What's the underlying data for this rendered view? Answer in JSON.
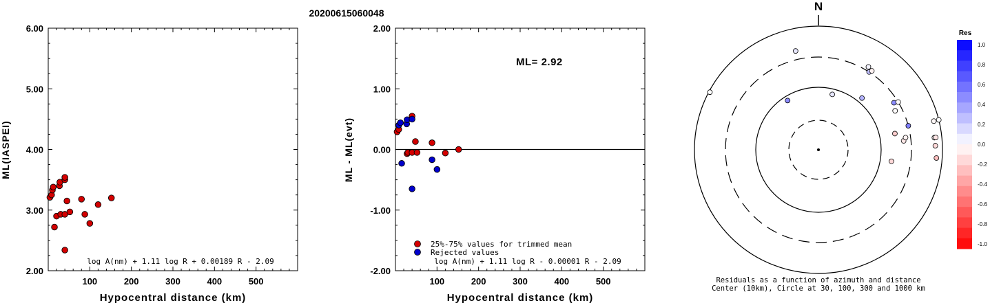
{
  "event_id": "20200615060048",
  "chart_data": [
    {
      "type": "scatter",
      "title": "",
      "xlabel": "Hypocentral distance (km)",
      "ylabel": "ML(IASPEI)",
      "xlim": [
        0,
        600
      ],
      "ylim": [
        2.0,
        6.0
      ],
      "xticks": [
        "100",
        "200",
        "300",
        "400",
        "500"
      ],
      "yticks": [
        "2.00",
        "3.00",
        "4.00",
        "5.00",
        "6.00"
      ],
      "formula": "log A(nm) + 1.11 log R + 0.00189 R - 2.09",
      "series": [
        {
          "color": "#d40000",
          "points": [
            [
              4,
              3.21
            ],
            [
              8,
              3.25
            ],
            [
              10,
              3.33
            ],
            [
              12,
              3.38
            ],
            [
              15,
              2.72
            ],
            [
              20,
              2.9
            ],
            [
              27,
              3.4
            ],
            [
              28,
              3.46
            ],
            [
              30,
              2.93
            ],
            [
              40,
              2.93
            ],
            [
              40,
              3.5
            ],
            [
              40,
              3.54
            ],
            [
              40,
              2.34
            ],
            [
              45,
              3.15
            ],
            [
              52,
              2.97
            ],
            [
              80,
              3.18
            ],
            [
              88,
              2.93
            ],
            [
              100,
              2.78
            ],
            [
              120,
              3.09
            ],
            [
              152,
              3.2
            ]
          ]
        }
      ]
    },
    {
      "type": "scatter",
      "title": "",
      "xlabel": "Hypocentral distance (km)",
      "ylabel": "ML - ML(evt)",
      "xlim": [
        0,
        600
      ],
      "ylim": [
        -2.0,
        2.0
      ],
      "xticks": [
        "100",
        "200",
        "300",
        "400",
        "500"
      ],
      "yticks": [
        "-2.00",
        "-1.00",
        "0.00",
        "1.00",
        "2.00"
      ],
      "annotation": "ML= 2.92",
      "formula": "log A(nm) + 1.11 log R - 0.00001 R - 2.09",
      "legend": [
        {
          "label": "25%-75% values for trimmed mean",
          "color": "#d40000"
        },
        {
          "label": "Rejected values",
          "color": "#0000cc"
        }
      ],
      "series": [
        {
          "name": "25%-75% values for trimmed mean",
          "color": "#d40000",
          "points": [
            [
              4,
              0.29
            ],
            [
              8,
              0.33
            ],
            [
              28,
              -0.07
            ],
            [
              30,
              -0.05
            ],
            [
              40,
              -0.05
            ],
            [
              40,
              0.55
            ],
            [
              48,
              0.13
            ],
            [
              52,
              -0.05
            ],
            [
              88,
              0.11
            ],
            [
              120,
              -0.06
            ],
            [
              152,
              0
            ]
          ]
        },
        {
          "name": "Rejected values",
          "color": "#0000cc",
          "points": [
            [
              8,
              0.4
            ],
            [
              12,
              0.44
            ],
            [
              15,
              -0.23
            ],
            [
              27,
              0.42
            ],
            [
              28,
              0.49
            ],
            [
              40,
              0.5
            ],
            [
              40,
              -0.65
            ],
            [
              88,
              -0.17
            ],
            [
              100,
              -0.33
            ]
          ]
        }
      ]
    }
  ],
  "polar": {
    "north_label": "N",
    "caption_line1": "Residuals as a function of azimuth and distance",
    "caption_line2": "Center (10km), Circle at 30, 100, 300 and 1000 km",
    "colorbar_title": "Res",
    "colorbar_ticks": [
      "1.0",
      "0.8",
      "0.6",
      "0.4",
      "0.2",
      "0.0",
      "-0.2",
      "-0.4",
      "-0.6",
      "-0.8",
      "-1.0"
    ],
    "stations": [
      {
        "az": -62,
        "dist": 960,
        "res": 0.0
      },
      {
        "az": -13,
        "dist": 420,
        "res": 0.1
      },
      {
        "az": -32,
        "dist": 85,
        "res": 0.45
      },
      {
        "az": 14,
        "dist": 82,
        "res": 0.1
      },
      {
        "az": 40,
        "dist": 120,
        "res": 0.3
      },
      {
        "az": 58,
        "dist": 260,
        "res": 0.45
      },
      {
        "az": 63,
        "dist": 233,
        "res": -0.01
      },
      {
        "az": 78,
        "dist": 175,
        "res": -0.2
      },
      {
        "az": 99,
        "dist": 150,
        "res": -0.15
      },
      {
        "az": 75,
        "dist": 300,
        "res": 0.5
      },
      {
        "az": 59,
        "dist": 300,
        "res": -0.01
      },
      {
        "az": 33,
        "dist": 300,
        "res": 0.25
      },
      {
        "az": 31,
        "dist": 350,
        "res": 0.05
      },
      {
        "az": 34,
        "dist": 330,
        "res": -0.05
      },
      {
        "az": 84,
        "dist": 230,
        "res": -0.1
      },
      {
        "az": 82,
        "dist": 250,
        "res": -0.05
      },
      {
        "az": 84,
        "dist": 750,
        "res": -0.02
      },
      {
        "az": 76,
        "dist": 820,
        "res": -0.03
      },
      {
        "az": 84,
        "dist": 790,
        "res": -0.1
      },
      {
        "az": 88,
        "dist": 760,
        "res": -0.15
      },
      {
        "az": 94,
        "dist": 800,
        "res": -0.25
      },
      {
        "az": 76,
        "dist": 1000,
        "res": 0.0
      }
    ]
  }
}
